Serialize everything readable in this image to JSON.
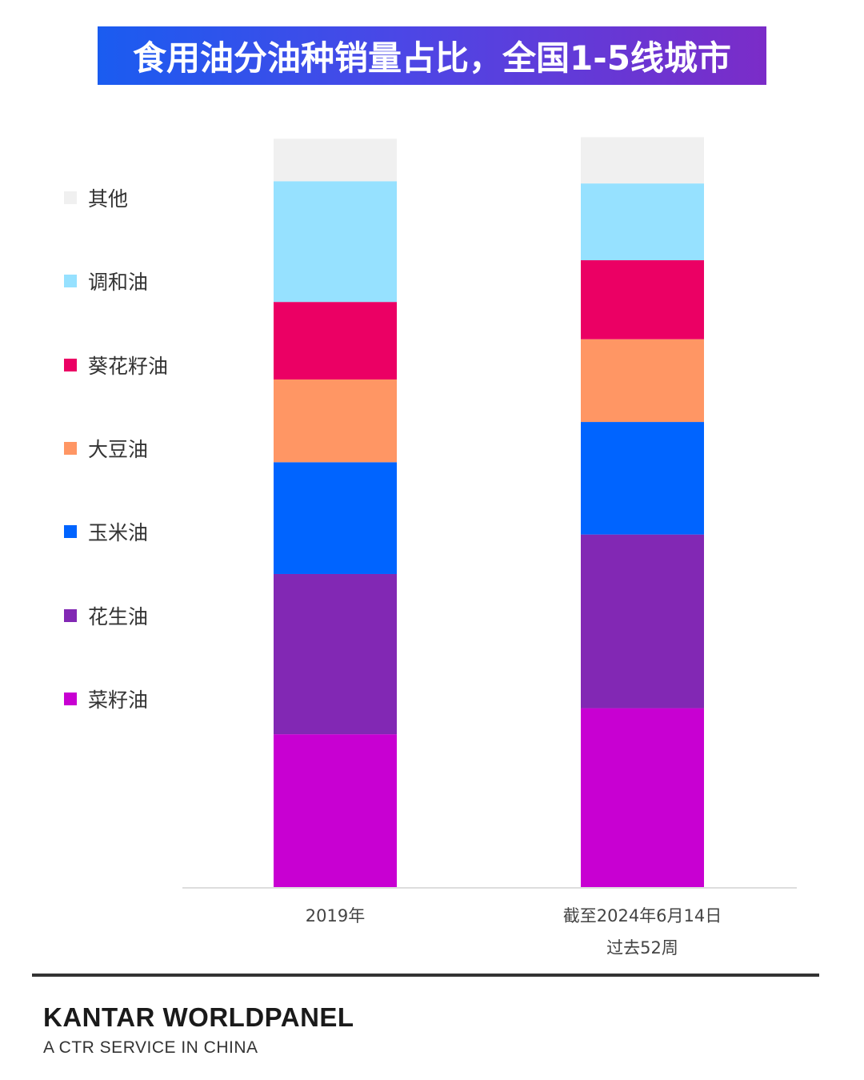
{
  "title": "食用油分油种销量占比，全国1-5线城市",
  "footer": {
    "brand": "KANTAR WORLDPANEL",
    "tagline": "A CTR SERVICE IN CHINA"
  },
  "colors": {
    "title_gradient_start": "#1a5cf0",
    "title_gradient_end": "#7b2cc8",
    "axis_line": "#dddddd"
  },
  "chart_data": {
    "type": "bar",
    "stacked": true,
    "categories": [
      "2019年",
      "截至2024年6月14日\n过去52周"
    ],
    "y_unit": "%",
    "ylim": [
      0,
      100
    ],
    "legend_position": "left",
    "series": [
      {
        "name": "菜籽油",
        "color": "#c800d2",
        "values": [
          20.5,
          24.0
        ]
      },
      {
        "name": "花生油",
        "color": "#8228b4",
        "values": [
          21.5,
          23.3
        ]
      },
      {
        "name": "玉米油",
        "color": "#0064ff",
        "values": [
          15.0,
          15.1
        ]
      },
      {
        "name": "大豆油",
        "color": "#ff9664",
        "values": [
          11.1,
          11.1
        ]
      },
      {
        "name": "葵花籽油",
        "color": "#eb0064",
        "values": [
          10.4,
          10.6
        ]
      },
      {
        "name": "调和油",
        "color": "#96e1ff",
        "values": [
          16.2,
          10.3
        ]
      },
      {
        "name": "其他",
        "color": "#f0f0f0",
        "values": [
          5.7,
          6.2
        ]
      }
    ]
  }
}
